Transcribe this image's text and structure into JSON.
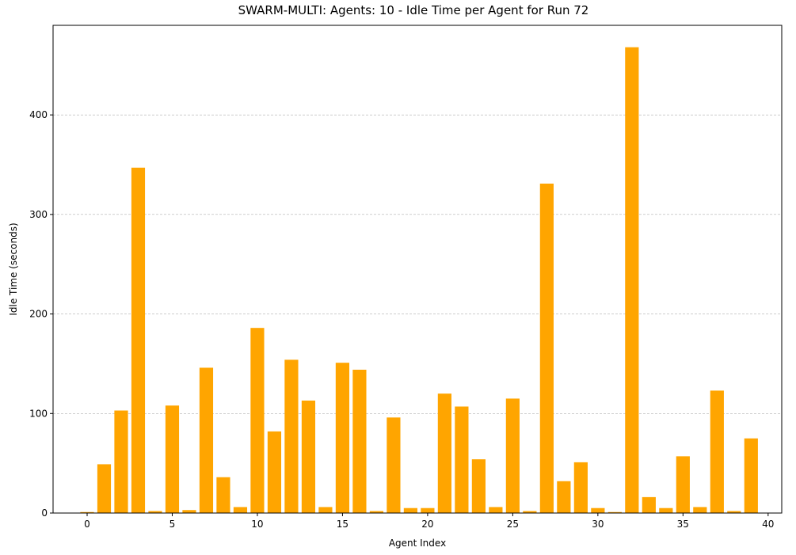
{
  "chart_data": {
    "type": "bar",
    "title": "SWARM-MULTI: Agents: 10 - Idle Time per Agent for Run 72",
    "xlabel": "Agent Index",
    "ylabel": "Idle Time (seconds)",
    "x": [
      0,
      1,
      2,
      3,
      4,
      5,
      6,
      7,
      8,
      9,
      10,
      11,
      12,
      13,
      14,
      15,
      16,
      17,
      18,
      19,
      20,
      21,
      22,
      23,
      24,
      25,
      26,
      27,
      28,
      29,
      30,
      31,
      32,
      33,
      34,
      35,
      36,
      37,
      38,
      39
    ],
    "values": [
      1,
      49,
      103,
      347,
      2,
      108,
      3,
      146,
      36,
      6,
      186,
      82,
      154,
      113,
      6,
      151,
      144,
      2,
      96,
      5,
      5,
      120,
      107,
      54,
      6,
      115,
      2,
      331,
      32,
      51,
      5,
      1,
      468,
      16,
      5,
      57,
      6,
      123,
      2,
      75
    ],
    "xlim": [
      -2,
      40.8
    ],
    "ylim": [
      0,
      490
    ],
    "x_ticks": [
      0,
      5,
      10,
      15,
      20,
      25,
      30,
      35,
      40
    ],
    "y_ticks": [
      0,
      100,
      200,
      300,
      400
    ],
    "bar_color": "#ffa500",
    "grid": "y-dashed",
    "legend": "none"
  }
}
